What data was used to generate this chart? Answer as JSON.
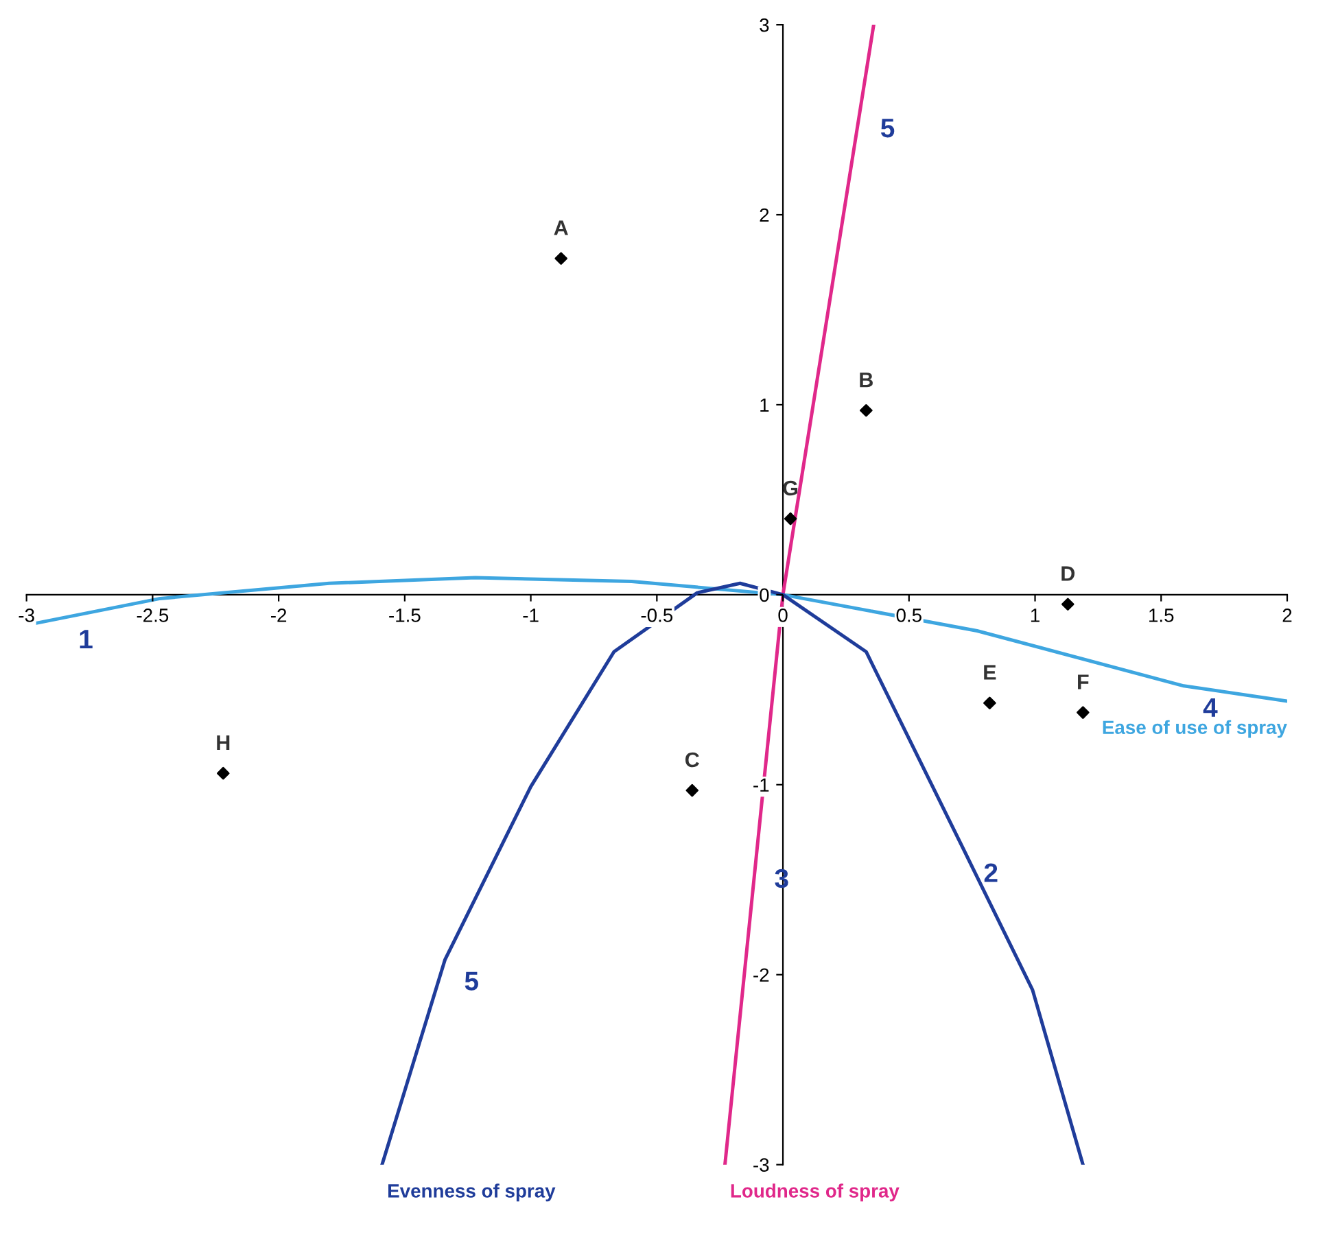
{
  "chart_data": {
    "type": "line",
    "xlim": [
      -3,
      2
    ],
    "ylim": [
      -3,
      3
    ],
    "xticks": [
      -3,
      -2.5,
      -2,
      -1.5,
      -1,
      -0.5,
      0,
      0.5,
      1,
      1.5,
      2
    ],
    "yticks": [
      -3,
      -2,
      -1,
      0,
      1,
      2,
      3
    ],
    "grid": false,
    "legend": false,
    "series": [
      {
        "name": "Loudness of spray",
        "color": "#e0288a",
        "x": [
          -0.23,
          0,
          0.36
        ],
        "values": [
          -3,
          0,
          3
        ],
        "marker": "none"
      },
      {
        "name": "Ease of use of spray",
        "color": "#3ea6e0",
        "x": [
          -3,
          -2.47,
          -1.8,
          -1.22,
          -0.6,
          0,
          0.77,
          1.59,
          2.0
        ],
        "values": [
          -0.16,
          -0.02,
          0.06,
          0.09,
          0.07,
          0,
          -0.19,
          -0.48,
          -0.56
        ],
        "marker": "none"
      },
      {
        "name": "Evenness of spray",
        "color": "#1f3c9a",
        "x": [
          -1.59,
          -1.34,
          -1.0,
          -0.67,
          -0.34,
          -0.17,
          0,
          0.33,
          0.72,
          0.99,
          1.19
        ],
        "values": [
          -3,
          -1.92,
          -1.01,
          -0.3,
          0.01,
          0.06,
          0,
          -0.3,
          -1.35,
          -2.08,
          -3
        ],
        "marker": "none"
      },
      {
        "type": "scatter",
        "color": "#000000",
        "x": [
          -0.88,
          0.33,
          -0.36,
          1.13,
          0.82,
          1.19,
          0.03,
          -2.22
        ],
        "values": [
          1.77,
          0.97,
          -1.03,
          -0.05,
          -0.57,
          -0.62,
          0.4,
          -0.94
        ],
        "marker": "diamond"
      }
    ],
    "annotations": [
      {
        "text": "A",
        "x": -0.88,
        "y": 1.77
      },
      {
        "text": "B",
        "x": 0.33,
        "y": 0.97
      },
      {
        "text": "C",
        "x": -0.36,
        "y": -1.03
      },
      {
        "text": "D",
        "x": 1.13,
        "y": -0.05
      },
      {
        "text": "E",
        "x": 0.82,
        "y": -0.57
      },
      {
        "text": "F",
        "x": 1.19,
        "y": -0.62
      },
      {
        "text": "G",
        "x": 0.03,
        "y": 0.4
      },
      {
        "text": "H",
        "x": -2.22,
        "y": -0.94
      },
      {
        "text": "1",
        "x": -2.87,
        "y": -0.12
      },
      {
        "text": "4",
        "x": 1.59,
        "y": -0.48
      },
      {
        "text": "2",
        "x": 0.72,
        "y": -1.35
      },
      {
        "text": "5",
        "x": -1.34,
        "y": -1.92
      },
      {
        "text": "5",
        "x": 0.31,
        "y": 2.57
      },
      {
        "text": "3",
        "x": -0.11,
        "y": -1.38
      }
    ]
  }
}
